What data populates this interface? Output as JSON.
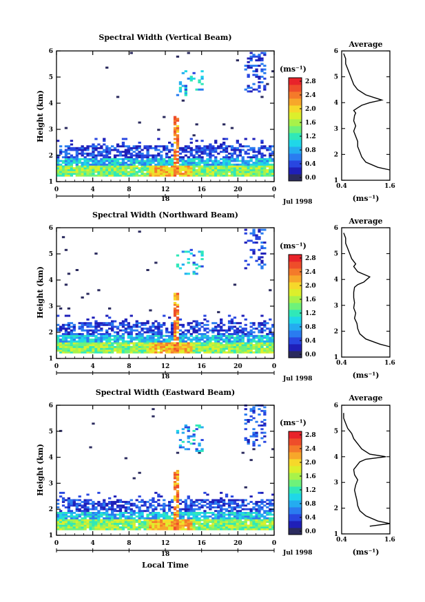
{
  "colorbar": {
    "unit_label": "(ms⁻¹)",
    "ticks": [
      "0.0",
      "0.4",
      "0.8",
      "1.2",
      "1.6",
      "2.0",
      "2.4",
      "2.8"
    ],
    "colors": [
      "#2b2b5e",
      "#1f1fb8",
      "#2846e0",
      "#2a7cf0",
      "#24acf0",
      "#1fd7e8",
      "#30e8b8",
      "#6ef27a",
      "#a8f24a",
      "#dcef2c",
      "#f6d82a",
      "#f7a72a",
      "#f47a2a",
      "#ee4d2a",
      "#e8232a"
    ]
  },
  "xlabel": "Local Time",
  "date_label": "Jul 1998",
  "day_label": "18",
  "avg_xlabel": "(ms⁻¹)",
  "avg_xticks": [
    "0.4",
    "1.6"
  ],
  "x_ticks": [
    "0",
    "4",
    "8",
    "12",
    "16",
    "20",
    "0"
  ],
  "y_ticks": [
    "1",
    "2",
    "3",
    "4",
    "5",
    "6"
  ],
  "chart_data": [
    {
      "type": "heatmap",
      "title": "Spectral Width (Vertical Beam)",
      "ylabel": "Height (km)",
      "xlim": [
        0,
        24
      ],
      "ylim": [
        1,
        6
      ],
      "avg_title": "Average",
      "avg_profile": {
        "width": [
          1.6,
          1.3,
          1.0,
          0.9,
          0.85,
          0.8,
          0.8,
          0.75,
          0.7,
          0.75,
          0.7,
          0.72,
          0.75,
          0.7,
          0.8,
          0.9,
          1.1,
          1.4,
          1.0,
          0.8,
          0.7,
          0.65,
          0.6,
          0.55,
          0.5,
          0.5,
          0.45
        ],
        "height": [
          1.4,
          1.5,
          1.7,
          1.9,
          2.1,
          2.3,
          2.5,
          2.7,
          2.9,
          3.1,
          3.3,
          3.5,
          3.6,
          3.7,
          3.8,
          3.9,
          4.0,
          4.1,
          4.3,
          4.5,
          4.7,
          4.9,
          5.1,
          5.3,
          5.5,
          5.7,
          5.9
        ]
      }
    },
    {
      "type": "heatmap",
      "title": "Spectral Width (Northward Beam)",
      "ylabel": "Height (km)",
      "xlim": [
        0,
        24
      ],
      "ylim": [
        1,
        6
      ],
      "avg_title": "Average",
      "avg_profile": {
        "width": [
          1.6,
          1.35,
          1.0,
          0.85,
          0.8,
          0.78,
          0.72,
          0.75,
          0.7,
          0.72,
          0.7,
          0.7,
          0.72,
          0.8,
          0.95,
          1.1,
          0.8,
          0.7,
          0.75,
          0.65,
          0.6,
          0.55,
          0.5,
          0.5,
          0.45
        ],
        "height": [
          1.4,
          1.5,
          1.7,
          1.9,
          2.1,
          2.3,
          2.5,
          2.7,
          2.9,
          3.1,
          3.3,
          3.5,
          3.7,
          3.8,
          3.9,
          4.1,
          4.3,
          4.5,
          4.6,
          4.8,
          5.0,
          5.2,
          5.4,
          5.6,
          5.8
        ]
      }
    },
    {
      "type": "heatmap",
      "title": "Spectral Width (Eastward Beam)",
      "ylabel": "Height (km)",
      "xlim": [
        0,
        24
      ],
      "ylim": [
        1,
        6
      ],
      "avg_title": "Average",
      "avg_profile": {
        "width": [
          1.1,
          1.6,
          1.3,
          1.0,
          0.85,
          0.8,
          0.78,
          0.75,
          0.72,
          0.75,
          0.8,
          0.72,
          0.7,
          0.75,
          0.85,
          1.0,
          1.5,
          1.1,
          0.9,
          0.8,
          0.7,
          0.65,
          0.55,
          0.5,
          0.45,
          0.45
        ],
        "height": [
          1.3,
          1.4,
          1.5,
          1.7,
          1.9,
          2.1,
          2.3,
          2.5,
          2.7,
          2.9,
          3.1,
          3.3,
          3.5,
          3.6,
          3.8,
          3.9,
          4.0,
          4.1,
          4.3,
          4.5,
          4.7,
          4.9,
          5.1,
          5.3,
          5.5,
          5.7
        ]
      }
    }
  ]
}
